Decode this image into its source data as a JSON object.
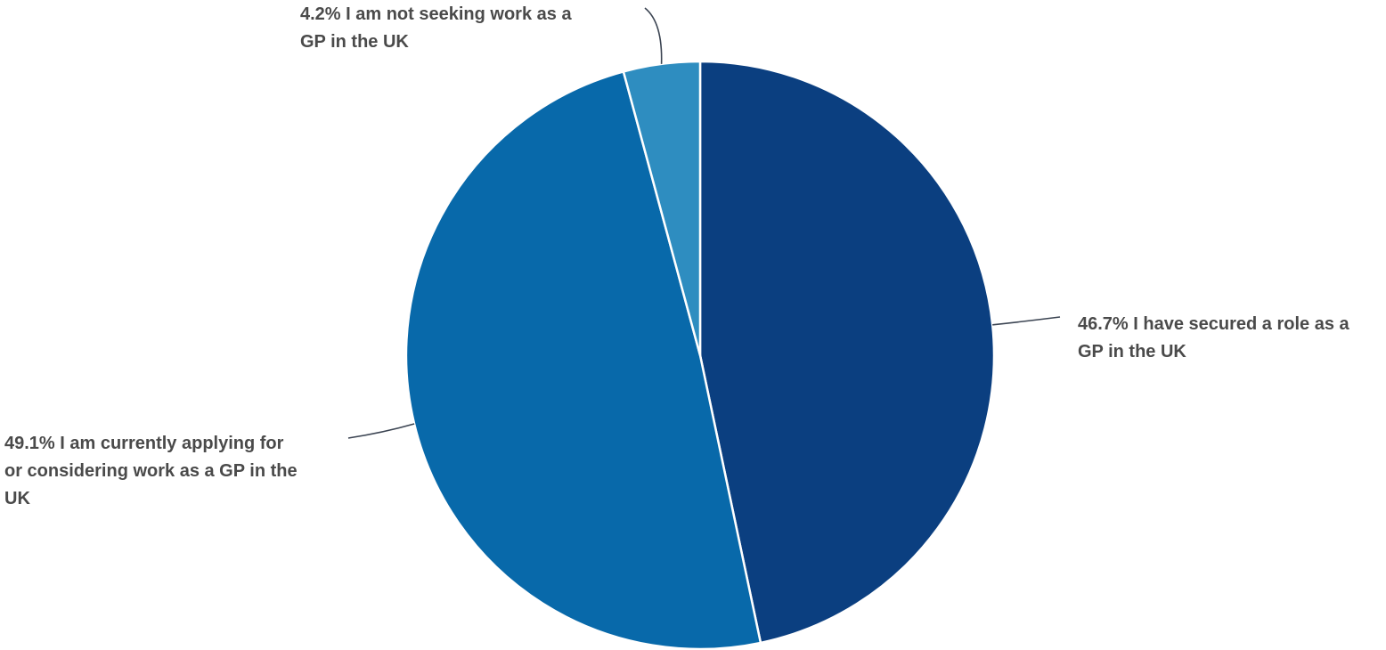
{
  "chart_data": {
    "type": "pie",
    "title": "",
    "slices": [
      {
        "value": 46.7,
        "value_label": "46.7%",
        "label": "I have secured a role as a GP in the UK",
        "label_lines": [
          "46.7% I have secured a role as a",
          "GP in the UK"
        ],
        "color": "#0b3f80"
      },
      {
        "value": 49.1,
        "value_label": "49.1%",
        "label": "I am currently applying for or considering work as a GP in the UK",
        "label_lines": [
          "49.1% I am currently applying for",
          "or considering work as a GP in the",
          "UK"
        ],
        "color": "#0869aa"
      },
      {
        "value": 4.2,
        "value_label": "4.2%",
        "label": "I am not seeking work as a GP in the UK",
        "label_lines": [
          "4.2% I am not seeking work as a",
          "GP in the UK"
        ],
        "color": "#2e8dc0"
      }
    ],
    "start_angle": "12 o'clock",
    "direction": "clockwise",
    "legend": "none",
    "label_style": "outside labels with leader lines",
    "text_color": "#4a4a4a",
    "leader_color": "#3b4452"
  }
}
